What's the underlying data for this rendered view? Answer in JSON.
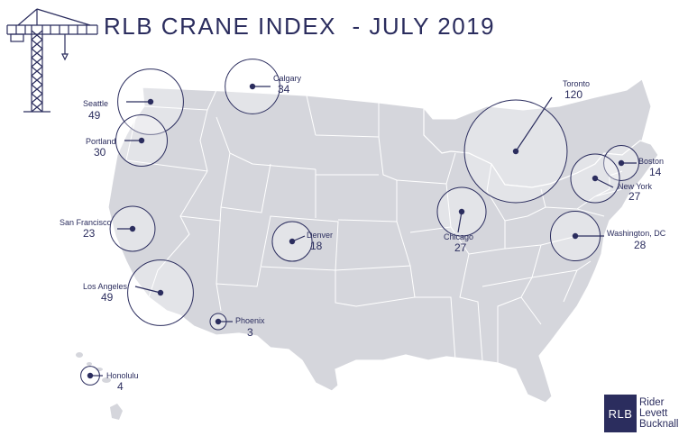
{
  "title": "RLB CRANE INDEX  - JULY 2019",
  "colors": {
    "navy": "#2b2d5e",
    "land": "#d5d6dc",
    "border": "#ffffff",
    "circle_fill": "rgba(255,255,255,0.35)"
  },
  "icons": {
    "crane": "crane-icon"
  },
  "cities": [
    {
      "id": "seattle",
      "name": "Seattle",
      "count": "49"
    },
    {
      "id": "portland",
      "name": "Portland",
      "count": "30"
    },
    {
      "id": "calgary",
      "name": "Calgary",
      "count": "34"
    },
    {
      "id": "san-francisco",
      "name": "San Francisco",
      "count": "23"
    },
    {
      "id": "los-angeles",
      "name": "Los Angeles",
      "count": "49"
    },
    {
      "id": "phoenix",
      "name": "Phoenix",
      "count": "3"
    },
    {
      "id": "honolulu",
      "name": "Honolulu",
      "count": "4"
    },
    {
      "id": "denver",
      "name": "Denver",
      "count": "18"
    },
    {
      "id": "chicago",
      "name": "Chicago",
      "count": "27"
    },
    {
      "id": "toronto",
      "name": "Toronto",
      "count": "120"
    },
    {
      "id": "boston",
      "name": "Boston",
      "count": "14"
    },
    {
      "id": "new-york",
      "name": "New York",
      "count": "27"
    },
    {
      "id": "washington-dc",
      "name": "Washington, DC",
      "count": "28"
    }
  ],
  "logo": {
    "mark": "RLB",
    "words": [
      "Rider",
      "Levett",
      "Bucknall"
    ]
  }
}
